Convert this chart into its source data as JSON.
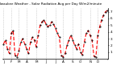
{
  "title": "Milwaukee Weather - Solar Radiation Avg per Day W/m2/minute",
  "background_color": "#ffffff",
  "line_color": "#ff0000",
  "marker_color": "#000000",
  "grid_color": "#b0b0b0",
  "ylim": [
    0,
    7.5
  ],
  "y_ticks": [
    1,
    2,
    3,
    4,
    5,
    6,
    7
  ],
  "y_tick_labels": [
    "1",
    "2",
    "3",
    "4",
    "5",
    "6",
    "7"
  ],
  "values": [
    2.2,
    2.8,
    1.5,
    0.8,
    3.8,
    4.2,
    0.5,
    0.3,
    1.2,
    2.5,
    3.0,
    2.2,
    1.5,
    0.8,
    2.5,
    3.2,
    2.8,
    1.8,
    3.5,
    5.0,
    5.5,
    5.8,
    5.2,
    4.8,
    5.0,
    5.5,
    5.2,
    4.5,
    3.8,
    3.2,
    0.5,
    0.3,
    0.8,
    2.0,
    2.8,
    3.5,
    2.8,
    2.0,
    1.5,
    2.2,
    1.0,
    0.6,
    2.5,
    3.8,
    4.2,
    3.5,
    2.8,
    0.4,
    0.3,
    3.5,
    4.8,
    5.8,
    6.5,
    7.0,
    7.2
  ],
  "x_tick_positions": [
    0,
    4,
    8,
    12,
    17,
    22,
    27,
    31,
    36,
    40,
    45,
    49,
    54
  ],
  "x_tick_labels": [
    "J",
    "F",
    "M",
    "A",
    "M",
    "J",
    "J",
    "A",
    "S",
    "O",
    "N",
    "D",
    ""
  ]
}
